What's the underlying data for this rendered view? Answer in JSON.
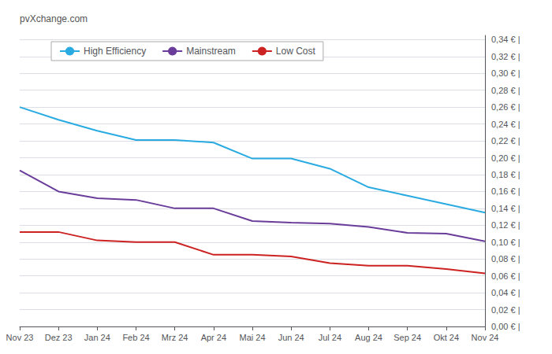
{
  "chart_data": {
    "type": "line",
    "categories": [
      "Nov 23",
      "Dez 23",
      "Jan 24",
      "Feb 24",
      "Mrz 24",
      "Apr 24",
      "Mai 24",
      "Jun 24",
      "Jul 24",
      "Aug 24",
      "Sep 24",
      "Okt 24",
      "Nov 24"
    ],
    "series": [
      {
        "name": "High Efficiency",
        "color": "#29ABE2",
        "values": [
          0.26,
          0.245,
          0.232,
          0.221,
          0.221,
          0.218,
          0.199,
          0.199,
          0.187,
          0.165,
          0.155,
          0.145,
          0.135
        ]
      },
      {
        "name": "Mainstream",
        "color": "#6A3D9A",
        "values": [
          0.185,
          0.16,
          0.152,
          0.15,
          0.14,
          0.14,
          0.125,
          0.123,
          0.122,
          0.118,
          0.111,
          0.11,
          0.101
        ]
      },
      {
        "name": "Low Cost",
        "color": "#CC2222",
        "values": [
          0.112,
          0.112,
          0.102,
          0.1,
          0.1,
          0.085,
          0.085,
          0.083,
          0.075,
          0.072,
          0.072,
          0.068,
          0.063
        ]
      }
    ],
    "ylim": [
      0,
      0.345
    ],
    "yticks": [
      {
        "value": 0,
        "label": "0,00 € |"
      },
      {
        "value": 0.02,
        "label": "0,02 € |"
      },
      {
        "value": 0.04,
        "label": "0,04 € |"
      },
      {
        "value": 0.06,
        "label": "0,06 € |"
      },
      {
        "value": 0.08,
        "label": "0,08 € |"
      },
      {
        "value": 0.1,
        "label": "0,10 € |"
      },
      {
        "value": 0.12,
        "label": "0,12 € |"
      },
      {
        "value": 0.14,
        "label": "0,14 € |"
      },
      {
        "value": 0.16,
        "label": "0,16 € |"
      },
      {
        "value": 0.18,
        "label": "0,18 € |"
      },
      {
        "value": 0.2,
        "label": "0,20 € |"
      },
      {
        "value": 0.22,
        "label": "0,22 € |"
      },
      {
        "value": 0.24,
        "label": "0,24 € |"
      },
      {
        "value": 0.26,
        "label": "0,26 € |"
      },
      {
        "value": 0.28,
        "label": "0,28 € |"
      },
      {
        "value": 0.3,
        "label": "0,30 € |"
      },
      {
        "value": 0.32,
        "label": "0,32 € |"
      },
      {
        "value": 0.34,
        "label": "0,34 € |"
      }
    ],
    "grid": true,
    "legend": "upper left",
    "annotations": [
      "pvXchange.com"
    ]
  }
}
